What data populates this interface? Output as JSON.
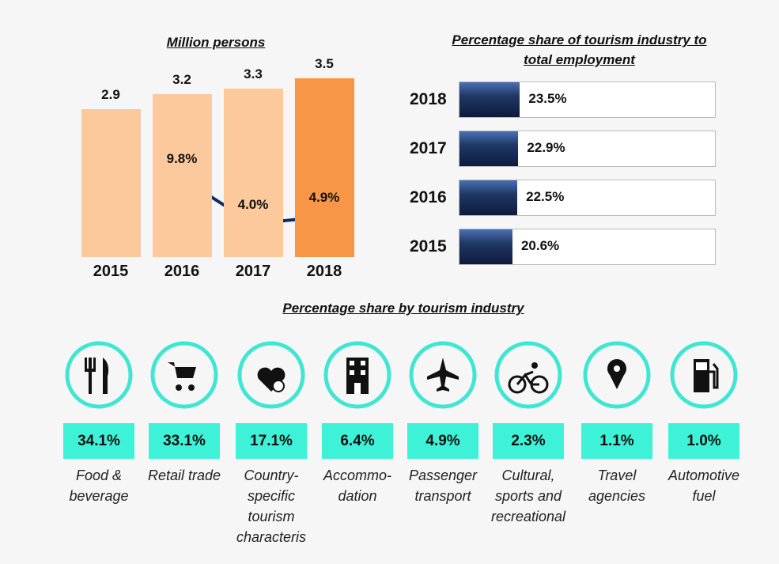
{
  "chart_data": [
    {
      "type": "bar-line",
      "title": "Million persons",
      "categories": [
        "2015",
        "2016",
        "2017",
        "2018"
      ],
      "series": [
        {
          "type": "bar",
          "values": [
            2.9,
            3.2,
            3.3,
            3.5
          ],
          "colors": [
            "#fbc99c",
            "#fbc99c",
            "#fbc99c",
            "#f79646"
          ]
        },
        {
          "type": "line",
          "values": [
            null,
            9.8,
            4.0,
            4.9
          ],
          "value_labels": [
            null,
            "9.8%",
            "4.0%",
            "4.9%"
          ],
          "color": "#132a63"
        }
      ]
    },
    {
      "type": "barh",
      "title": "Percentage share of tourism industry to total employment",
      "categories": [
        "2018",
        "2017",
        "2016",
        "2015"
      ],
      "values": [
        23.5,
        22.9,
        22.5,
        20.6
      ],
      "value_labels": [
        "23.5%",
        "22.9%",
        "22.5%",
        "20.6%"
      ],
      "color": "#1f3864"
    },
    {
      "type": "icon-share",
      "title": "Percentage share by tourism industry",
      "categories": [
        "Food & beverage",
        "Retail trade",
        "Country-specific tourism characteris",
        "Accommo-dation",
        "Passenger transport",
        "Cultural, sports and recreational",
        "Travel agencies",
        "Automotive fuel"
      ],
      "values": [
        34.1,
        33.1,
        17.1,
        6.4,
        4.9,
        2.3,
        1.1,
        1.0
      ],
      "value_labels": [
        "34.1%",
        "33.1%",
        "17.1%",
        "6.4%",
        "4.9%",
        "2.3%",
        "1.1%",
        "1.0%"
      ],
      "color": "#3ef2d8"
    }
  ]
}
